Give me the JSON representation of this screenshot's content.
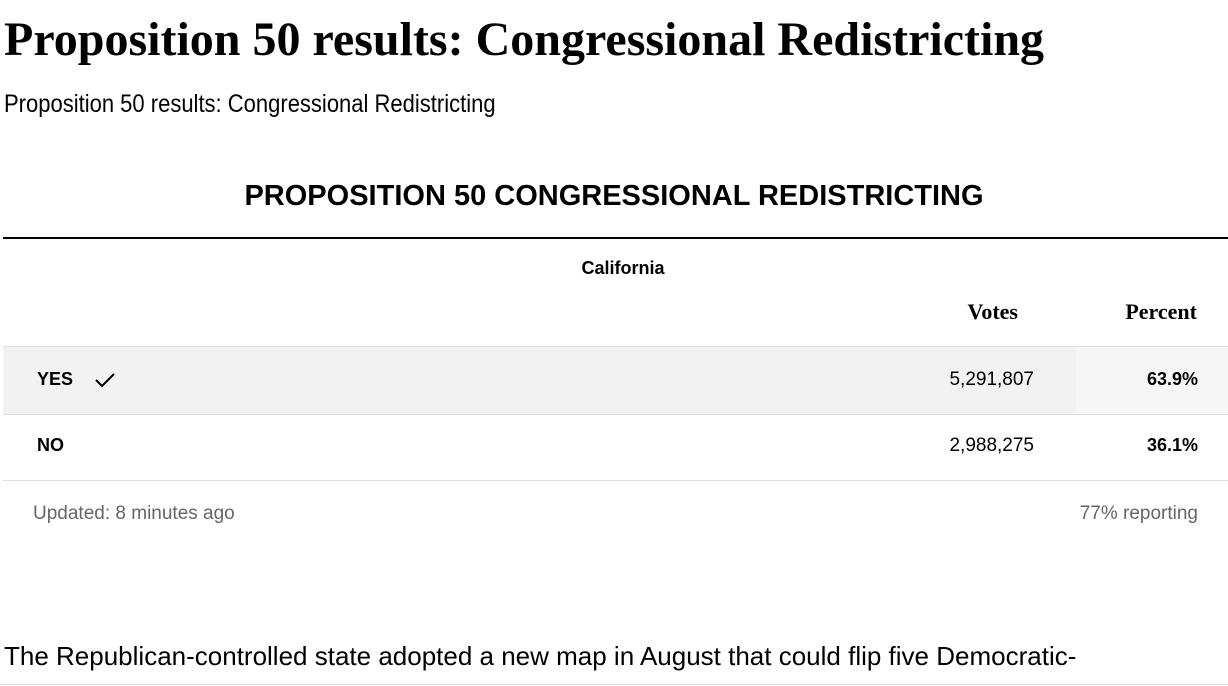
{
  "header": {
    "title": "Proposition 50 results: Congressional Redistricting",
    "subtitle": "Proposition 50 results: Congressional Redistricting"
  },
  "results": {
    "title": "PROPOSITION 50 CONGRESSIONAL REDISTRICTING",
    "region": "California",
    "columns": [
      "Votes",
      "Percent"
    ],
    "rows": [
      {
        "label": "YES",
        "votes": "5,291,807",
        "percent": "63.9%",
        "winner": true
      },
      {
        "label": "NO",
        "votes": "2,988,275",
        "percent": "36.1%",
        "winner": false
      }
    ],
    "updated": "Updated: 8 minutes ago",
    "reporting": "77% reporting"
  },
  "body": {
    "paragraph": "The Republican-controlled state adopted a new map in August that could flip five Democratic-"
  }
}
